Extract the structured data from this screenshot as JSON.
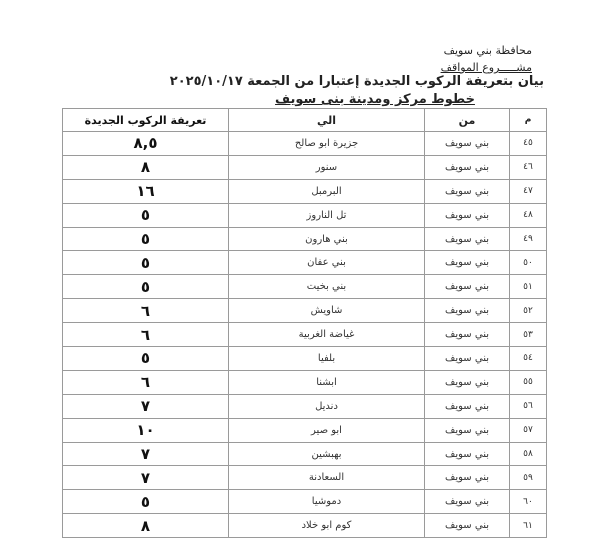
{
  "header": {
    "governorate": "محافظة بني سويف",
    "project": "مشـــــروع المواقف",
    "title": "بيان بتعريفة الركوب الجديدة إعتبارا من الجمعة ٢٠٢٥/١٠/١٧",
    "subtitle": "خطوط مركز ومدينة بنى سويف"
  },
  "table": {
    "columns": [
      "م",
      "من",
      "الي",
      "تعريفة الركوب الجديدة"
    ],
    "rows": [
      {
        "num": "٤٥",
        "from": "بني سويف",
        "to": "جزيرة ابو صالح",
        "fare": "٨,٥"
      },
      {
        "num": "٤٦",
        "from": "بني سويف",
        "to": "سنور",
        "fare": "٨"
      },
      {
        "num": "٤٧",
        "from": "بني سويف",
        "to": "البرمبل",
        "fare": "١٦"
      },
      {
        "num": "٤٨",
        "from": "بني سويف",
        "to": "تل الناروز",
        "fare": "٥"
      },
      {
        "num": "٤٩",
        "from": "بني سويف",
        "to": "بني هارون",
        "fare": "٥"
      },
      {
        "num": "٥٠",
        "from": "بني سويف",
        "to": "بني عفان",
        "fare": "٥"
      },
      {
        "num": "٥١",
        "from": "بني سويف",
        "to": "بني بخيت",
        "fare": "٥"
      },
      {
        "num": "٥٢",
        "from": "بني سويف",
        "to": "شاويش",
        "fare": "٦"
      },
      {
        "num": "٥٣",
        "from": "بني سويف",
        "to": "غياضة الغربية",
        "fare": "٦"
      },
      {
        "num": "٥٤",
        "from": "بني سويف",
        "to": "بلفيا",
        "fare": "٥"
      },
      {
        "num": "٥٥",
        "from": "بني سويف",
        "to": "ابشنا",
        "fare": "٦"
      },
      {
        "num": "٥٦",
        "from": "بني سويف",
        "to": "دنديل",
        "fare": "٧"
      },
      {
        "num": "٥٧",
        "from": "بني سويف",
        "to": "ابو صير",
        "fare": "١٠"
      },
      {
        "num": "٥٨",
        "from": "بني سويف",
        "to": "بهبشين",
        "fare": "٧"
      },
      {
        "num": "٥٩",
        "from": "بني سويف",
        "to": "السعادنة",
        "fare": "٧"
      },
      {
        "num": "٦٠",
        "from": "بني سويف",
        "to": "دموشيا",
        "fare": "٥"
      },
      {
        "num": "٦١",
        "from": "بني سويف",
        "to": "كوم ابو خلاد",
        "fare": "٨"
      }
    ]
  }
}
